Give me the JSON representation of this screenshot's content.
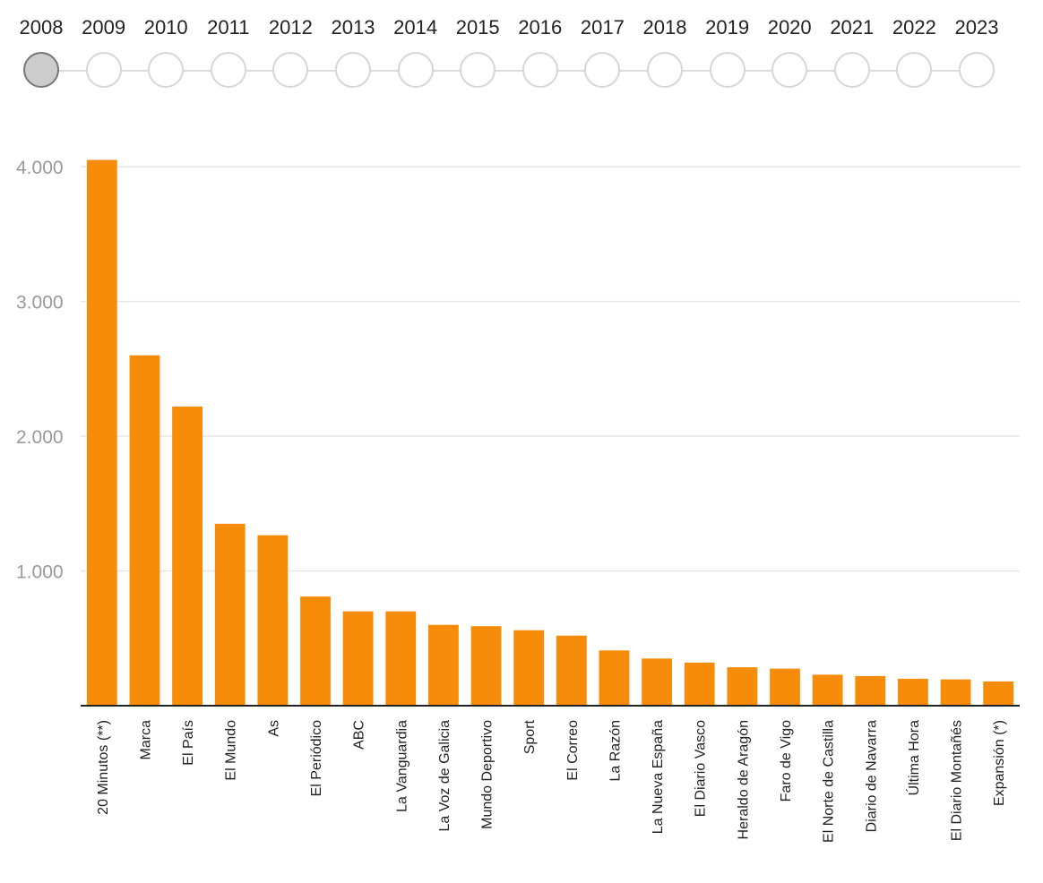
{
  "timeline": {
    "years": [
      "2008",
      "2009",
      "2010",
      "2011",
      "2012",
      "2013",
      "2014",
      "2015",
      "2016",
      "2017",
      "2018",
      "2019",
      "2020",
      "2021",
      "2022",
      "2023"
    ],
    "selected": "2008"
  },
  "chart_data": {
    "type": "bar",
    "categories": [
      "20 Minutos (**)",
      "Marca",
      "El País",
      "El Mundo",
      "As",
      "El Periódico",
      "ABC",
      "La Vanguardia",
      "La Voz de Galicia",
      "Mundo Deportivo",
      "Sport",
      "El Correo",
      "La Razón",
      "La Nueva España",
      "El Diario Vasco",
      "Heraldo de Aragón",
      "Faro de Vigo",
      "El Norte de Castilla",
      "Diario de Navarra",
      "Última Hora",
      "El Diario Montañés",
      "Expansión (*)"
    ],
    "values": [
      4050,
      2600,
      2220,
      1350,
      1265,
      810,
      700,
      700,
      600,
      590,
      560,
      520,
      410,
      350,
      320,
      285,
      275,
      230,
      220,
      200,
      195,
      180
    ],
    "yticks": [
      1000,
      2000,
      3000,
      4000
    ],
    "ytick_labels": [
      "1.000",
      "2.000",
      "3.000",
      "4.000"
    ],
    "ylim": [
      0,
      4200
    ],
    "grid": true,
    "colors": {
      "bar": "#f78c0a",
      "grid": "#e6e6e6",
      "axis": "#222222"
    }
  }
}
